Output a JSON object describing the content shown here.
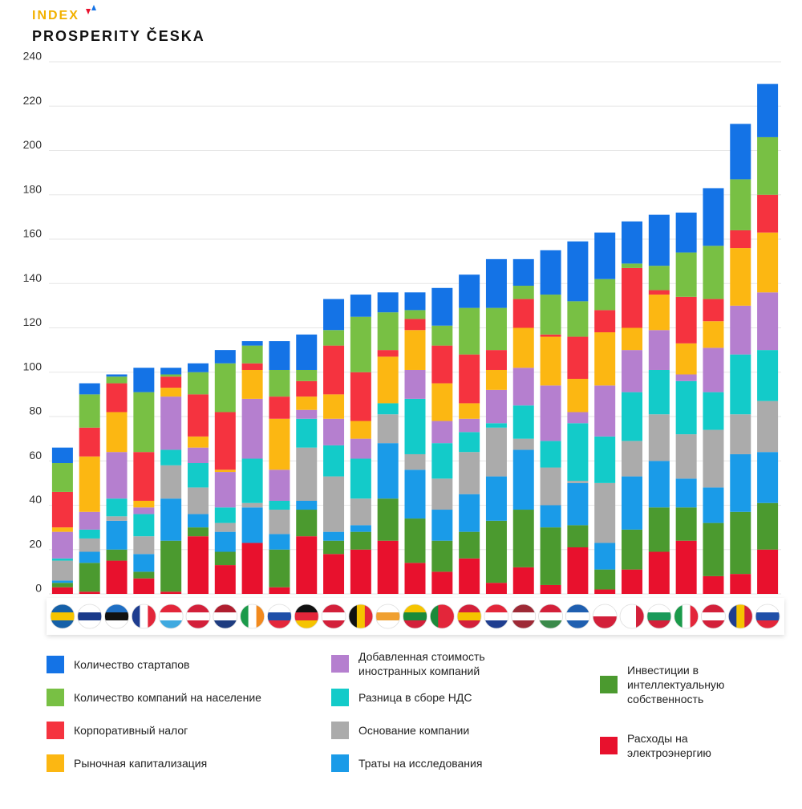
{
  "logo": {
    "line1": "INDEX",
    "line2": "PROSPERITY ČESKA"
  },
  "chart_data": {
    "type": "stacked-bar",
    "categories": [
      null,
      null,
      null,
      null,
      null,
      null,
      null,
      null,
      null,
      null,
      null,
      null,
      null,
      null,
      null,
      null,
      null,
      null,
      null,
      null,
      null,
      null,
      null,
      null,
      null,
      null,
      null
    ],
    "ylim": [
      0,
      240
    ],
    "yticks": [
      0,
      20,
      40,
      60,
      80,
      100,
      120,
      140,
      160,
      180,
      200,
      220,
      240
    ],
    "grid": true,
    "series": [
      {
        "name": "Расходы на электроэнергию",
        "color": "#e8112d",
        "values": [
          3,
          1,
          15,
          7,
          1,
          26,
          13,
          23,
          3,
          26,
          18,
          20,
          24,
          14,
          10,
          16,
          5,
          12,
          4,
          21,
          2,
          11,
          19,
          24,
          8,
          9,
          20
        ]
      },
      {
        "name": "Инвестиции в интеллектуальную собственность",
        "color": "#4b9a2f",
        "values": [
          2,
          13,
          5,
          3,
          23,
          4,
          6,
          0,
          17,
          12,
          6,
          8,
          19,
          20,
          14,
          12,
          28,
          26,
          26,
          10,
          9,
          18,
          20,
          15,
          24,
          28,
          21
        ]
      },
      {
        "name": "Траты на исследования",
        "color": "#1a9be8",
        "values": [
          1,
          5,
          13,
          8,
          19,
          6,
          9,
          16,
          7,
          4,
          4,
          3,
          25,
          22,
          14,
          17,
          20,
          27,
          10,
          19,
          12,
          24,
          21,
          13,
          16,
          26,
          23
        ]
      },
      {
        "name": "Основание компании",
        "color": "#ababab",
        "values": [
          9,
          6,
          2,
          8,
          15,
          12,
          4,
          2,
          11,
          24,
          25,
          12,
          13,
          7,
          14,
          19,
          22,
          5,
          17,
          1,
          27,
          16,
          21,
          20,
          26,
          18,
          23
        ]
      },
      {
        "name": "Разница в сборе НДС",
        "color": "#13cbc9",
        "values": [
          1,
          4,
          8,
          10,
          7,
          11,
          7,
          20,
          4,
          13,
          14,
          18,
          5,
          25,
          16,
          9,
          2,
          15,
          12,
          26,
          21,
          22,
          20,
          24,
          17,
          27,
          23
        ]
      },
      {
        "name": "Добавленная стоимость иностранных компаний",
        "color": "#b57fcf",
        "values": [
          12,
          8,
          21,
          3,
          24,
          7,
          16,
          27,
          14,
          4,
          12,
          9,
          0,
          13,
          10,
          6,
          15,
          17,
          25,
          5,
          23,
          19,
          18,
          3,
          20,
          22,
          26
        ]
      },
      {
        "name": "Рыночная капитализация",
        "color": "#fcb712",
        "values": [
          2,
          25,
          18,
          3,
          4,
          5,
          1,
          13,
          23,
          6,
          11,
          8,
          21,
          18,
          17,
          7,
          9,
          18,
          22,
          15,
          24,
          10,
          16,
          14,
          12,
          26,
          27
        ]
      },
      {
        "name": "Корпоративный налог",
        "color": "#f5333f",
        "values": [
          16,
          13,
          13,
          22,
          5,
          19,
          26,
          3,
          10,
          7,
          22,
          22,
          3,
          5,
          17,
          22,
          9,
          13,
          1,
          19,
          10,
          27,
          2,
          21,
          10,
          8,
          17
        ]
      },
      {
        "name": "Количество компаний на население",
        "color": "#78c044",
        "values": [
          13,
          15,
          3,
          27,
          1,
          10,
          22,
          8,
          12,
          5,
          7,
          25,
          17,
          4,
          9,
          21,
          19,
          6,
          18,
          16,
          14,
          2,
          11,
          20,
          24,
          23,
          26
        ]
      },
      {
        "name": "Количество стартапов",
        "color": "#1473e6",
        "values": [
          7,
          5,
          1,
          11,
          3,
          4,
          6,
          2,
          13,
          16,
          14,
          10,
          9,
          8,
          17,
          15,
          22,
          12,
          20,
          27,
          21,
          19,
          23,
          18,
          26,
          25,
          24
        ]
      }
    ]
  }
}
